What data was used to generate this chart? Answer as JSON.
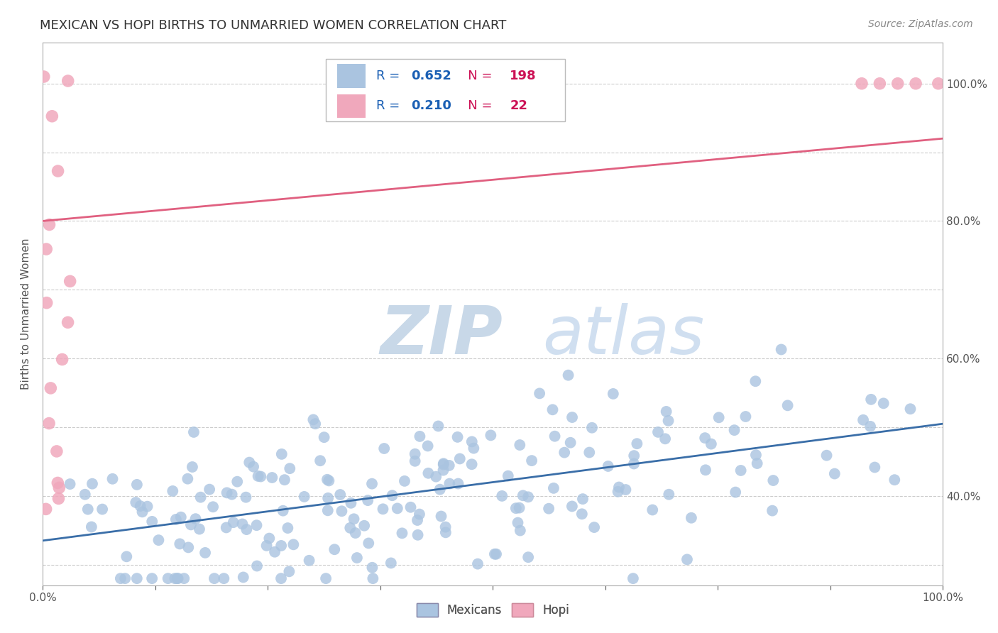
{
  "title": "MEXICAN VS HOPI BIRTHS TO UNMARRIED WOMEN CORRELATION CHART",
  "source_text": "Source: ZipAtlas.com",
  "ylabel": "Births to Unmarried Women",
  "blue_R": 0.652,
  "blue_N": 198,
  "pink_R": 0.21,
  "pink_N": 22,
  "blue_color": "#aac4e0",
  "blue_line_color": "#3a6ea8",
  "pink_color": "#f0a8bc",
  "pink_line_color": "#e06080",
  "background_color": "#ffffff",
  "grid_color": "#cccccc",
  "title_color": "#333333",
  "legend_R_color": "#1a5fb4",
  "legend_N_color": "#cc1155",
  "watermark_ZIP_color": "#c8d8e8",
  "watermark_atlas_color": "#d0dff0",
  "xlim": [
    0.0,
    1.0
  ],
  "ylim": [
    0.27,
    1.06
  ],
  "blue_line_y0": 0.335,
  "blue_line_y1": 0.505,
  "pink_line_y0": 0.8,
  "pink_line_y1": 0.92,
  "right_yticks": [
    0.4,
    0.6,
    0.8,
    1.0
  ],
  "tick_label_color": "#555555",
  "axis_color": "#aaaaaa"
}
